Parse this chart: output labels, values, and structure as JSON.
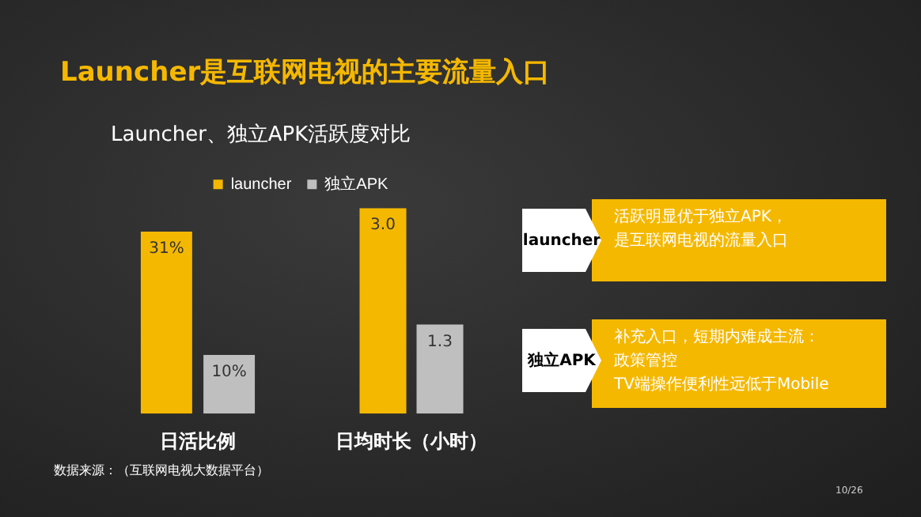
{
  "chart_data": [
    {
      "type": "bar",
      "title": "Launcher是互联网电视的主要流量入口",
      "subtitle": "Launcher、独立APK活跃度对比",
      "categories": [
        "日活比例"
      ],
      "series": [
        {
          "name": "launcher",
          "color": "#f5b800",
          "values": [
            31
          ],
          "value_labels": [
            "31%"
          ]
        },
        {
          "name": "独立APK",
          "color": "#bfbfbf",
          "values": [
            10
          ],
          "value_labels": [
            "10%"
          ]
        }
      ],
      "tick_labels": "x",
      "legend": "top",
      "grid": false,
      "annotations": [
        "launcher",
        "活跃明显优于独立APK，",
        "是互联网电视的流量入口",
        "独立APK",
        "补充入口，短期内难成主流：",
        "政策管控",
        "TV端操作便利性远低于Mobile",
        "数据来源：（互联网电视大数据平台）",
        "10/26"
      ]
    },
    {
      "type": "bar",
      "categories": [
        "日均时长（小时）"
      ],
      "series": [
        {
          "color": "#f5b800",
          "values": [
            3.0
          ],
          "value_labels": [
            "3.0"
          ]
        },
        {
          "color": "#bfbfbf",
          "values": [
            1.3
          ],
          "value_labels": [
            "1.3"
          ]
        }
      ],
      "tick_labels": "x",
      "grid": false
    }
  ]
}
